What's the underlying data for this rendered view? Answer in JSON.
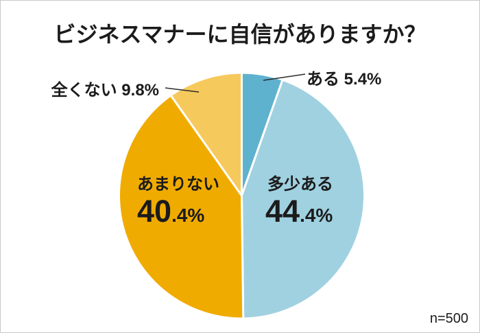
{
  "page": {
    "background": "#ffffff",
    "border_color": "#c9c9c9",
    "text_color": "#1b1b1b"
  },
  "title": "ビジネスマナーに自信がありますか？",
  "footnote": "n=500",
  "chart_data": {
    "type": "pie",
    "title": "ビジネスマナーに自信がありますか？",
    "start_angle": "12-oclock",
    "direction": "clockwise",
    "unit": "%",
    "annotation": "n=500",
    "slice_gap_color": "#ffffff",
    "slices": [
      {
        "label": "ある",
        "value": 5.4,
        "pct_text": "5.4%",
        "color": "#5FB2CE",
        "label_placement": "callout-top-right"
      },
      {
        "label": "多少ある",
        "value": 44.4,
        "pct_int": "44",
        "pct_frac": ".4%",
        "color": "#A0D1E0",
        "label_placement": "inside"
      },
      {
        "label": "あまりない",
        "value": 40.4,
        "pct_int": "40",
        "pct_frac": ".4%",
        "color": "#F0AB00",
        "label_placement": "inside"
      },
      {
        "label": "全くない",
        "value": 9.8,
        "pct_text": "9.8%",
        "color": "#F6C95C",
        "label_placement": "callout-top-left"
      }
    ]
  }
}
